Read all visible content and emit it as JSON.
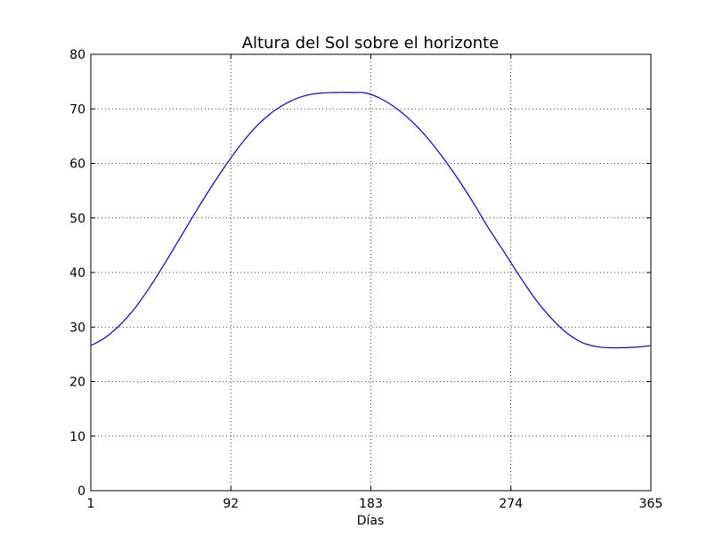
{
  "chart_data": {
    "type": "line",
    "title": "Altura del Sol sobre el horizonte",
    "xlabel": "Días",
    "ylabel": "",
    "xlim": [
      1,
      365
    ],
    "ylim": [
      0,
      80
    ],
    "xticks": [
      1,
      92,
      183,
      274,
      365
    ],
    "yticks": [
      0,
      10,
      20,
      30,
      40,
      50,
      60,
      70,
      80
    ],
    "grid": true,
    "series": [
      {
        "color": "#0000ff",
        "x": [
          1,
          10,
          20,
          30,
          40,
          50,
          60,
          70,
          80,
          90,
          100,
          110,
          120,
          130,
          140,
          150,
          160,
          172,
          180,
          190,
          200,
          210,
          220,
          230,
          240,
          250,
          260,
          270,
          280,
          290,
          300,
          310,
          320,
          330,
          340,
          355,
          365
        ],
        "y": [
          26.6,
          28.0,
          30.4,
          33.6,
          37.6,
          42.1,
          46.8,
          51.5,
          56.0,
          60.2,
          64.0,
          67.2,
          69.6,
          71.3,
          72.4,
          72.9,
          73.0,
          73.0,
          72.9,
          71.8,
          70.0,
          67.6,
          64.6,
          61.0,
          57.0,
          52.6,
          47.9,
          43.6,
          39.2,
          35.1,
          31.7,
          29.0,
          27.2,
          26.4,
          26.2,
          26.3,
          26.6
        ]
      }
    ]
  }
}
